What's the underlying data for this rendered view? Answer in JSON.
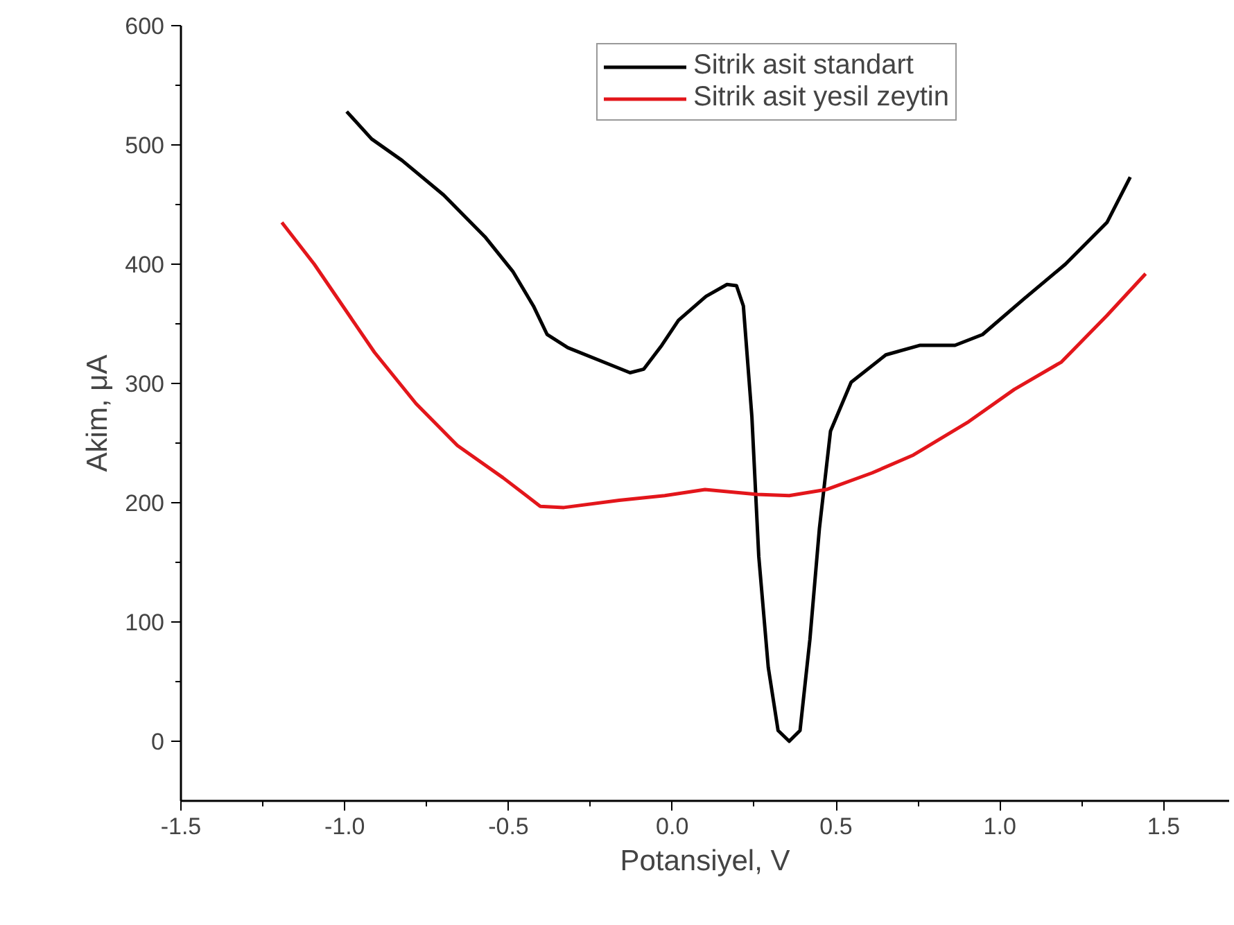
{
  "chart_data": {
    "type": "line",
    "xlabel": "Potansiyel, V",
    "ylabel": "Akim, μA",
    "xlim": [
      -1.5,
      1.7
    ],
    "xticks": [
      {
        "value": -1.5,
        "label": "-1.5"
      },
      {
        "value": -1,
        "label": "-1.0"
      },
      {
        "value": -0.5,
        "label": "-0.5"
      },
      {
        "value": 0,
        "label": "0.0"
      },
      {
        "value": 0.5,
        "label": "0.5"
      },
      {
        "value": 1,
        "label": "1.0"
      },
      {
        "value": 1.5,
        "label": "1.5"
      }
    ],
    "ylim": [
      -50,
      600
    ],
    "yticks": [
      0,
      100,
      200,
      300,
      400,
      500,
      600
    ],
    "grid": false,
    "legend": "top",
    "line_style": "solid",
    "series": [
      {
        "name": "Sitrik asit standart",
        "color": "#000000",
        "x": [
          -0.994,
          -0.918,
          -0.825,
          -0.698,
          -0.572,
          -0.487,
          -0.424,
          -0.382,
          -0.319,
          -0.192,
          -0.129,
          -0.087,
          -0.032,
          0.019,
          0.103,
          0.167,
          0.196,
          0.217,
          0.243,
          0.264,
          0.293,
          0.323,
          0.357,
          0.39,
          0.42,
          0.449,
          0.483,
          0.546,
          0.652,
          0.757,
          0.863,
          0.947,
          1.074,
          1.2,
          1.327,
          1.398
        ],
        "values": [
          528,
          505,
          487,
          458,
          423,
          394,
          365,
          341,
          330,
          316,
          309,
          312,
          332,
          353,
          373,
          383,
          382,
          365,
          272,
          155,
          62,
          9,
          0,
          9,
          85,
          178,
          260,
          301,
          324,
          332,
          332,
          341,
          371,
          400,
          435,
          473
        ]
      },
      {
        "name": "Sitrik asit yesil zeytin",
        "color": "#e3161b",
        "x": [
          -1.192,
          -1.093,
          -0.909,
          -0.782,
          -0.656,
          -0.517,
          -0.403,
          -0.331,
          -0.162,
          -0.023,
          0.1,
          0.259,
          0.357,
          0.47,
          0.61,
          0.736,
          0.905,
          1.044,
          1.188,
          1.327,
          1.445
        ],
        "values": [
          435,
          400,
          326,
          283,
          248,
          221,
          197,
          196,
          202,
          206,
          211,
          207,
          206,
          211,
          225,
          240,
          268,
          295,
          318,
          357,
          392
        ]
      }
    ]
  }
}
